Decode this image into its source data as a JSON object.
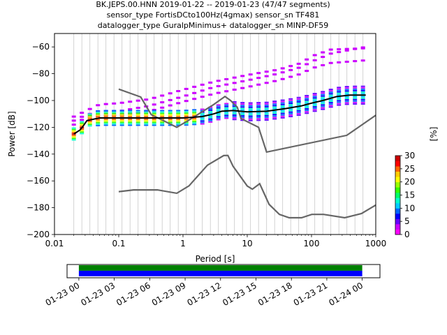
{
  "title": {
    "line1": "BK.JEPS.00.HNN   2019-01-22 -- 2019-01-23  (47/47 segments)",
    "line2": "sensor_type FortisDCto100Hz(4gmax) sensor_sn TF481",
    "line3": "datalogger_type GuralpMinimus+ datalogger_sn MINP-DF59"
  },
  "chart_data": [
    {
      "type": "heatmap",
      "name": "ppsd",
      "xlabel": "Period [s]",
      "ylabel": "Power [dB]",
      "xscale": "log",
      "xlim": [
        0.01,
        1000
      ],
      "ylim": [
        -200,
        -50
      ],
      "grid": "vertical lines at period bins",
      "x_ticks": [
        {
          "v": 0.01,
          "label": "0.01"
        },
        {
          "v": 0.1,
          "label": "0.1"
        },
        {
          "v": 1,
          "label": "1"
        },
        {
          "v": 10,
          "label": "10"
        },
        {
          "v": 100,
          "label": "100"
        },
        {
          "v": 1000,
          "label": "1000"
        }
      ],
      "y_ticks": [
        {
          "v": -60,
          "label": "−60"
        },
        {
          "v": -80,
          "label": "−80"
        },
        {
          "v": -100,
          "label": "−100"
        },
        {
          "v": -120,
          "label": "−120"
        },
        {
          "v": -140,
          "label": "−140"
        },
        {
          "v": -160,
          "label": "−160"
        },
        {
          "v": -180,
          "label": "−180"
        },
        {
          "v": -200,
          "label": "−200"
        }
      ],
      "noise_models": {
        "color": "#666666",
        "high": [
          [
            0.1,
            -91.5
          ],
          [
            0.22,
            -97.4
          ],
          [
            0.32,
            -110.5
          ],
          [
            0.8,
            -120
          ],
          [
            1.2,
            -115
          ],
          [
            3,
            -103
          ],
          [
            4.5,
            -97
          ],
          [
            5.5,
            -100
          ],
          [
            7,
            -105
          ],
          [
            8,
            -113.5
          ],
          [
            15,
            -120
          ],
          [
            20,
            -138.5
          ],
          [
            354,
            -126
          ],
          [
            1000,
            -111
          ]
        ],
        "low": [
          [
            0.1,
            -168
          ],
          [
            0.17,
            -166.7
          ],
          [
            0.4,
            -166.7
          ],
          [
            0.8,
            -169.2
          ],
          [
            1.24,
            -163.7
          ],
          [
            2.4,
            -148.3
          ],
          [
            4.3,
            -141.1
          ],
          [
            5,
            -141
          ],
          [
            6,
            -149
          ],
          [
            10,
            -163.8
          ],
          [
            12,
            -166.2
          ],
          [
            15.6,
            -162.1
          ],
          [
            21.9,
            -177.5
          ],
          [
            31.6,
            -185
          ],
          [
            45,
            -187.5
          ],
          [
            70,
            -187.5
          ],
          [
            101,
            -185
          ],
          [
            154,
            -185
          ],
          [
            328,
            -187.5
          ],
          [
            600,
            -184.4
          ],
          [
            1000,
            -178
          ]
        ]
      },
      "mean_curve": {
        "color": "#000000",
        "points": [
          [
            0.02,
            -125
          ],
          [
            0.025,
            -122
          ],
          [
            0.028,
            -119
          ],
          [
            0.032,
            -115
          ],
          [
            0.05,
            -113
          ],
          [
            0.1,
            -113
          ],
          [
            0.3,
            -113
          ],
          [
            1,
            -113
          ],
          [
            2,
            -112
          ],
          [
            3,
            -110
          ],
          [
            4,
            -108
          ],
          [
            6,
            -107.5
          ],
          [
            10,
            -108.5
          ],
          [
            20,
            -108
          ],
          [
            40,
            -106
          ],
          [
            70,
            -104
          ],
          [
            100,
            -102
          ],
          [
            150,
            -100
          ],
          [
            250,
            -97
          ],
          [
            400,
            -96
          ],
          [
            700,
            -96
          ]
        ]
      },
      "upper_bands": {
        "color": "#cc00ff",
        "bands": [
          [
            [
              0.02,
              -112
            ],
            [
              0.03,
              -108
            ],
            [
              0.05,
              -103
            ],
            [
              0.1,
              -102
            ],
            [
              0.3,
              -99
            ],
            [
              1,
              -92
            ],
            [
              3,
              -86
            ],
            [
              10,
              -81
            ],
            [
              30,
              -77
            ],
            [
              70,
              -72
            ],
            [
              100,
              -67
            ],
            [
              200,
              -62
            ],
            [
              700,
              -61
            ]
          ],
          [
            [
              0.02,
              -115
            ],
            [
              0.03,
              -111
            ],
            [
              0.05,
              -108
            ],
            [
              0.1,
              -108
            ],
            [
              0.3,
              -104
            ],
            [
              1,
              -97
            ],
            [
              3,
              -90
            ],
            [
              10,
              -85
            ],
            [
              30,
              -80
            ],
            [
              70,
              -75
            ],
            [
              100,
              -71
            ],
            [
              200,
              -65
            ],
            [
              700,
              -60
            ]
          ],
          [
            [
              0.02,
              -118
            ],
            [
              0.03,
              -113
            ],
            [
              0.05,
              -111
            ],
            [
              0.1,
              -111
            ],
            [
              0.3,
              -108
            ],
            [
              1,
              -101
            ],
            [
              3,
              -95
            ],
            [
              10,
              -90
            ],
            [
              30,
              -85
            ],
            [
              70,
              -80
            ],
            [
              100,
              -76
            ],
            [
              200,
              -72
            ],
            [
              700,
              -70
            ]
          ]
        ]
      },
      "colorbar": {
        "label": "[%]",
        "range": [
          0,
          30
        ],
        "ticks": [
          {
            "v": 0,
            "label": "0"
          },
          {
            "v": 5,
            "label": "5"
          },
          {
            "v": 10,
            "label": "10"
          },
          {
            "v": 15,
            "label": "15"
          },
          {
            "v": 20,
            "label": "20"
          },
          {
            "v": 25,
            "label": "25"
          },
          {
            "v": 30,
            "label": "30"
          }
        ],
        "colors": [
          "#ff00ff",
          "#cc00ff",
          "#6600ff",
          "#0000ff",
          "#0066ff",
          "#00ccff",
          "#00ffcc",
          "#00ff66",
          "#33ff00",
          "#99ff00",
          "#ffff00",
          "#ffcc00",
          "#ff6600",
          "#ff0000",
          "#cc0000"
        ]
      }
    },
    {
      "type": "timeline",
      "name": "data-coverage",
      "xlim": [
        "2019-01-22 23:00",
        "2019-01-24 01:30"
      ],
      "x_ticks": [
        {
          "t": "2019-01-23 00:00",
          "label": "01-23 00"
        },
        {
          "t": "2019-01-23 03:00",
          "label": "01-23 03"
        },
        {
          "t": "2019-01-23 06:00",
          "label": "01-23 06"
        },
        {
          "t": "2019-01-23 09:00",
          "label": "01-23 09"
        },
        {
          "t": "2019-01-23 12:00",
          "label": "01-23 12"
        },
        {
          "t": "2019-01-23 15:00",
          "label": "01-23 15"
        },
        {
          "t": "2019-01-23 18:00",
          "label": "01-23 18"
        },
        {
          "t": "2019-01-23 21:00",
          "label": "01-23 21"
        },
        {
          "t": "2019-01-24 00:00",
          "label": "01-24 00"
        }
      ],
      "rows": [
        {
          "color": "#008000",
          "start": "2019-01-23 00:00",
          "end": "2019-01-24 00:00"
        },
        {
          "color": "#0000ff",
          "start": "2019-01-23 00:00",
          "end": "2019-01-24 00:00"
        }
      ]
    }
  ]
}
